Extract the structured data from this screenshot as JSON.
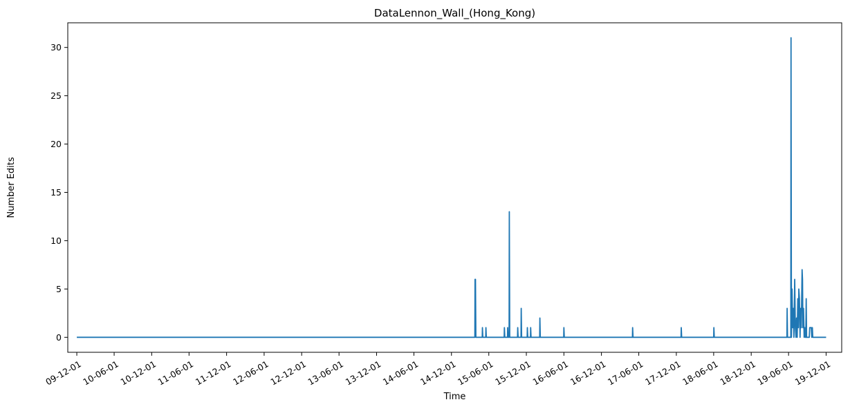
{
  "chart_data": {
    "type": "line",
    "title": "DataLennon_Wall_(Hong_Kong)",
    "xlabel": "Time",
    "ylabel": "Number Edits",
    "x_tick_labels": [
      "09-12-01",
      "10-06-01",
      "10-12-01",
      "11-06-01",
      "11-12-01",
      "12-06-01",
      "12-12-01",
      "13-06-01",
      "13-12-01",
      "14-06-01",
      "14-12-01",
      "15-06-01",
      "15-12-01",
      "16-06-01",
      "16-12-01",
      "17-06-01",
      "17-12-01",
      "18-06-01",
      "18-12-01",
      "19-06-01",
      "19-12-01"
    ],
    "y_ticks": [
      0,
      5,
      10,
      15,
      20,
      25,
      30
    ],
    "y_tick_labels": [
      "0",
      "5",
      "10",
      "15",
      "20",
      "25",
      "30"
    ],
    "xlim": [
      "2009-10-18",
      "2020-02-15"
    ],
    "ylim": [
      -1.55,
      32.55
    ],
    "grid": false,
    "legend": "none",
    "line_color": "#1f77b4",
    "series": [
      {
        "points": [
          [
            "2009-12-01",
            0
          ],
          [
            "2015-03-25",
            0
          ],
          [
            "2015-03-26",
            6
          ],
          [
            "2015-03-28",
            6
          ],
          [
            "2015-03-30",
            0
          ],
          [
            "2015-04-30",
            0
          ],
          [
            "2015-05-01",
            1
          ],
          [
            "2015-05-03",
            0
          ],
          [
            "2015-05-17",
            0
          ],
          [
            "2015-05-18",
            1
          ],
          [
            "2015-05-20",
            0
          ],
          [
            "2015-08-15",
            0
          ],
          [
            "2015-08-16",
            1
          ],
          [
            "2015-08-18",
            0
          ],
          [
            "2015-08-31",
            0
          ],
          [
            "2015-09-01",
            1
          ],
          [
            "2015-09-03",
            0
          ],
          [
            "2015-09-08",
            0
          ],
          [
            "2015-09-09",
            13
          ],
          [
            "2015-09-11",
            0
          ],
          [
            "2015-10-19",
            0
          ],
          [
            "2015-10-20",
            1
          ],
          [
            "2015-10-22",
            0
          ],
          [
            "2015-11-05",
            0
          ],
          [
            "2015-11-06",
            3
          ],
          [
            "2015-11-08",
            0
          ],
          [
            "2015-12-05",
            0
          ],
          [
            "2015-12-06",
            1
          ],
          [
            "2015-12-08",
            0
          ],
          [
            "2015-12-21",
            0
          ],
          [
            "2015-12-22",
            1
          ],
          [
            "2015-12-24",
            0
          ],
          [
            "2016-02-04",
            0
          ],
          [
            "2016-02-05",
            2
          ],
          [
            "2016-02-07",
            0
          ],
          [
            "2016-05-31",
            0
          ],
          [
            "2016-06-01",
            1
          ],
          [
            "2016-06-03",
            0
          ],
          [
            "2017-05-01",
            0
          ],
          [
            "2017-05-02",
            1
          ],
          [
            "2017-05-04",
            0
          ],
          [
            "2017-12-24",
            0
          ],
          [
            "2017-12-25",
            1
          ],
          [
            "2017-12-27",
            0
          ],
          [
            "2018-06-01",
            0
          ],
          [
            "2018-06-02",
            1
          ],
          [
            "2018-06-04",
            0
          ],
          [
            "2019-05-24",
            0
          ],
          [
            "2019-05-25",
            3
          ],
          [
            "2019-05-27",
            0
          ],
          [
            "2019-06-12",
            0
          ],
          [
            "2019-06-13",
            31
          ],
          [
            "2019-06-15",
            0
          ],
          [
            "2019-06-18",
            5
          ],
          [
            "2019-06-21",
            1
          ],
          [
            "2019-06-24",
            3
          ],
          [
            "2019-06-27",
            0
          ],
          [
            "2019-07-01",
            6
          ],
          [
            "2019-07-04",
            1
          ],
          [
            "2019-07-07",
            0
          ],
          [
            "2019-07-10",
            2
          ],
          [
            "2019-07-13",
            0
          ],
          [
            "2019-07-16",
            4
          ],
          [
            "2019-07-19",
            1
          ],
          [
            "2019-07-21",
            5
          ],
          [
            "2019-07-24",
            4
          ],
          [
            "2019-07-27",
            0
          ],
          [
            "2019-07-30",
            3
          ],
          [
            "2019-08-02",
            1
          ],
          [
            "2019-08-06",
            7
          ],
          [
            "2019-08-08",
            6
          ],
          [
            "2019-08-10",
            1
          ],
          [
            "2019-08-13",
            3
          ],
          [
            "2019-08-16",
            0
          ],
          [
            "2019-08-19",
            1
          ],
          [
            "2019-08-22",
            0
          ],
          [
            "2019-08-24",
            0
          ],
          [
            "2019-08-26",
            4
          ],
          [
            "2019-08-28",
            0
          ],
          [
            "2019-09-10",
            0
          ],
          [
            "2019-09-12",
            1
          ],
          [
            "2019-09-20",
            1
          ],
          [
            "2019-09-22",
            0
          ],
          [
            "2019-09-25",
            1
          ],
          [
            "2019-09-27",
            0
          ],
          [
            "2019-12-01",
            0
          ]
        ]
      }
    ]
  }
}
